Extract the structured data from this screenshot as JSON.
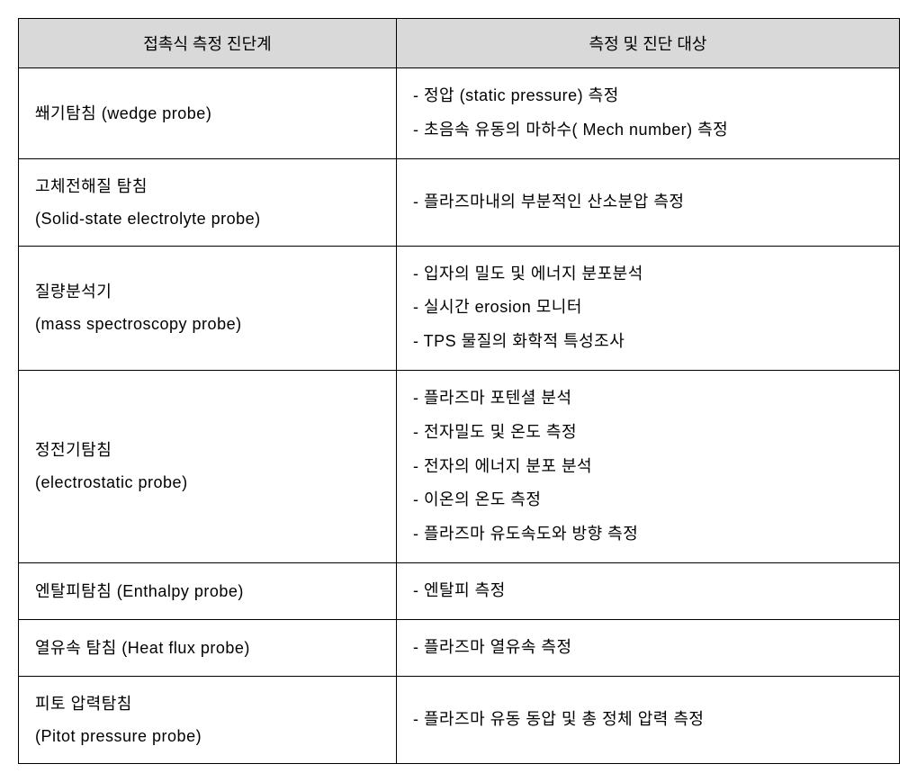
{
  "table": {
    "header_bg": "#d9d9d9",
    "border_color": "#000000",
    "columns": [
      "접촉식 측정 진단계",
      "측정 및 진단 대상"
    ],
    "rows": [
      {
        "probe_lines": [
          "쐐기탐침 (wedge probe)"
        ],
        "targets": [
          "-  정압 (static pressure) 측정",
          "-  초음속 유동의 마하수( Mech number) 측정"
        ]
      },
      {
        "probe_lines": [
          "고체전해질 탐침",
          "(Solid-state electrolyte probe)"
        ],
        "targets": [
          "-  플라즈마내의 부분적인 산소분압 측정"
        ]
      },
      {
        "probe_lines": [
          "질량분석기",
          "(mass spectroscopy probe)"
        ],
        "targets": [
          "-  입자의 밀도 및 에너지 분포분석",
          "-  실시간 erosion 모니터",
          "-  TPS 물질의 화학적 특성조사"
        ]
      },
      {
        "probe_lines": [
          "정전기탐침",
          "(electrostatic probe)"
        ],
        "targets": [
          "-  플라즈마 포텐셜 분석",
          "-  전자밀도 및 온도 측정",
          "-  전자의 에너지 분포 분석",
          "-  이온의 온도 측정",
          "-  플라즈마 유도속도와 방향 측정"
        ]
      },
      {
        "probe_lines": [
          "엔탈피탐침 (Enthalpy probe)"
        ],
        "targets": [
          "-  엔탈피 측정"
        ]
      },
      {
        "probe_lines": [
          "열유속 탐침 (Heat flux probe)"
        ],
        "targets": [
          "-  플라즈마 열유속 측정"
        ]
      },
      {
        "probe_lines": [
          "피토 압력탐침",
          "(Pitot pressure probe)"
        ],
        "targets": [
          "-  플라즈마 유동 동압 및 총 정체 압력 측정"
        ]
      }
    ]
  }
}
